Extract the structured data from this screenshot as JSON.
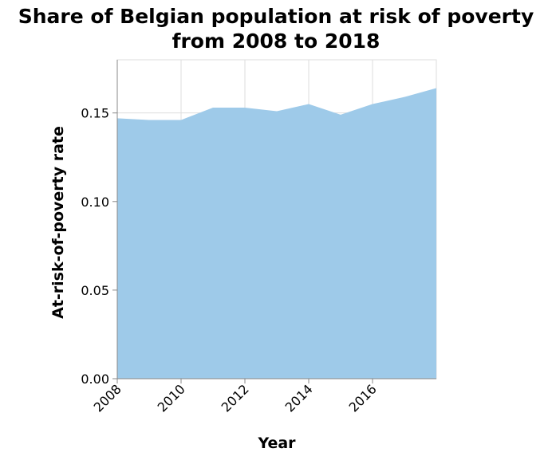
{
  "chart_data": {
    "type": "area",
    "title_lines": [
      "Share of Belgian population at risk of poverty",
      "from 2008 to 2018"
    ],
    "xlabel": "Year",
    "ylabel": "At-risk-of-poverty rate",
    "x": [
      2008,
      2009,
      2010,
      2011,
      2012,
      2013,
      2014,
      2015,
      2016,
      2017,
      2018
    ],
    "values": [
      0.147,
      0.146,
      0.146,
      0.153,
      0.153,
      0.151,
      0.155,
      0.149,
      0.155,
      0.159,
      0.164
    ],
    "xlim": [
      2008,
      2018
    ],
    "ylim": [
      0,
      0.18
    ],
    "x_ticks": [
      {
        "value": 2008,
        "label": "2008"
      },
      {
        "value": 2010,
        "label": "2010"
      },
      {
        "value": 2012,
        "label": "2012"
      },
      {
        "value": 2014,
        "label": "2014"
      },
      {
        "value": 2016,
        "label": "2016"
      }
    ],
    "y_ticks": [
      {
        "value": 0,
        "label": "0.00"
      },
      {
        "value": 0.05,
        "label": "0.05"
      },
      {
        "value": 0.1,
        "label": "0.10"
      },
      {
        "value": 0.15,
        "label": "0.15"
      }
    ],
    "grid": true,
    "fill_color": "#9ecae9"
  }
}
